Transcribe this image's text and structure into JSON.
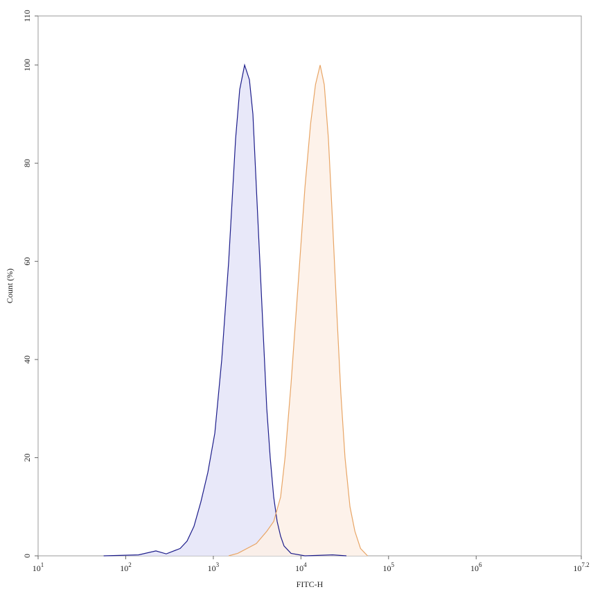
{
  "chart_data": {
    "type": "histogram_overlay",
    "x_label": "FITC-H",
    "y_label": "Count (%)",
    "xscale": "log",
    "xlim": [
      10,
      15848931.92
    ],
    "xticks": [
      {
        "value": 10,
        "label": "10",
        "exponent": "1"
      },
      {
        "value": 100,
        "label": "10",
        "exponent": "2"
      },
      {
        "value": 1000,
        "label": "10",
        "exponent": "3"
      },
      {
        "value": 10000,
        "label": "10",
        "exponent": "4"
      },
      {
        "value": 100000,
        "label": "10",
        "exponent": "5"
      },
      {
        "value": 1000000,
        "label": "10",
        "exponent": "6"
      },
      {
        "value": 15848931.92,
        "label": "10",
        "exponent": "7.2"
      }
    ],
    "ylim": [
      0,
      110
    ],
    "yticks": [
      0,
      20,
      40,
      60,
      80,
      100,
      110
    ],
    "series": [
      {
        "color": "#1c1c8a",
        "fill": "#e4e4f8",
        "x": [
          56,
          140,
          221,
          290,
          418,
          501,
          601,
          721,
          866,
          1040,
          1248,
          1497,
          1796,
          2000,
          2275,
          2582,
          2830,
          3099,
          3396,
          3719,
          4074,
          4460,
          4887,
          5350,
          5860,
          6415,
          7705,
          11100,
          22960,
          33040
        ],
        "values": [
          0,
          0.2,
          1,
          0.4,
          1.5,
          3,
          6,
          11,
          17,
          25,
          40,
          60,
          85,
          95,
          100,
          97,
          90,
          75,
          60,
          45,
          30,
          20,
          12,
          7,
          4,
          2,
          0.5,
          0,
          0.2,
          0
        ]
      },
      {
        "color": "#e8a565",
        "fill": "#fdf0e6",
        "x": [
          1497,
          1900,
          3099,
          4074,
          4887,
          5860,
          6580,
          7705,
          9260,
          11100,
          12880,
          14650,
          16560,
          18460,
          20580,
          22960,
          25600,
          28560,
          31850,
          36280,
          41300,
          47890,
          57610
        ],
        "values": [
          0,
          0.5,
          2.5,
          5,
          7,
          12,
          20,
          35,
          55,
          75,
          88,
          96,
          100,
          96,
          85,
          68,
          50,
          33,
          20,
          10,
          5,
          1.5,
          0
        ]
      }
    ]
  }
}
